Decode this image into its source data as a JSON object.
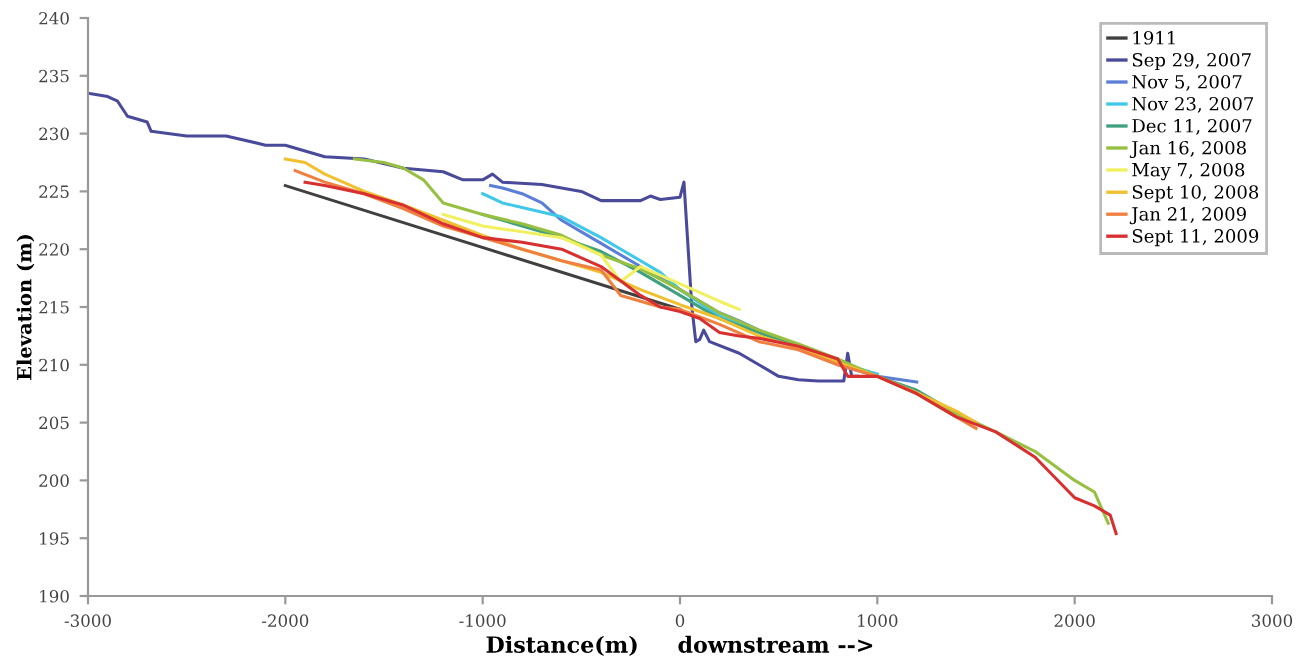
{
  "chart_data": {
    "type": "line",
    "xlabel": "Distance(m)     downstream -->",
    "ylabel": "Elevation (m)",
    "xlim": [
      -3000,
      3000
    ],
    "xticks": [
      -3000,
      -2000,
      -1000,
      0,
      1000,
      2000,
      3000
    ],
    "ylim": [
      190,
      240
    ],
    "yticks": [
      190,
      195,
      200,
      205,
      210,
      215,
      220,
      225,
      230,
      235,
      240
    ],
    "grid": false,
    "legend": "top right",
    "marker": "none",
    "line_style": "solid",
    "series": [
      {
        "name": "1911",
        "color": "#404040",
        "x": [
          -2000,
          0
        ],
        "values": [
          225.5,
          214.8
        ]
      },
      {
        "name": "Sep 29, 2007",
        "color": "#4a4a9a",
        "x": [
          -3000,
          -2900,
          -2850,
          -2800,
          -2700,
          -2680,
          -2500,
          -2300,
          -2100,
          -2000,
          -1800,
          -1600,
          -1400,
          -1200,
          -1100,
          -1000,
          -950,
          -900,
          -700,
          -500,
          -400,
          -200,
          -150,
          -100,
          0,
          20,
          60,
          80,
          100,
          120,
          150,
          300,
          400,
          500,
          600,
          700,
          800,
          830,
          850,
          870,
          900
        ],
        "values": [
          233.5,
          233.2,
          232.8,
          231.5,
          231,
          230.2,
          229.8,
          229.8,
          229,
          229,
          228,
          227.8,
          227,
          226.7,
          226,
          226,
          226.5,
          225.8,
          225.6,
          225,
          224.2,
          224.2,
          224.6,
          224.3,
          224.5,
          225.8,
          215,
          212,
          212.2,
          213,
          212,
          211,
          210,
          209,
          208.7,
          208.6,
          208.6,
          208.6,
          211,
          209,
          209
        ]
      },
      {
        "name": "Nov 5, 2007",
        "color": "#5b7fd6",
        "x": [
          -960,
          -900,
          -800,
          -700,
          -600,
          -500,
          -400,
          -300,
          -200,
          -100,
          0,
          100,
          200,
          300,
          400,
          800,
          1000,
          1200
        ],
        "values": [
          225.5,
          225.3,
          224.8,
          224,
          222.5,
          221.5,
          220.5,
          219.5,
          218.5,
          217.5,
          216.5,
          215.5,
          214.5,
          213.8,
          213,
          210,
          209,
          208.5
        ]
      },
      {
        "name": "Nov 23, 2007",
        "color": "#40c8e8",
        "x": [
          -1000,
          -900,
          -800,
          -600,
          -400,
          -300,
          -200,
          -100,
          0,
          200,
          400,
          800,
          1000
        ],
        "values": [
          224.8,
          224,
          223.6,
          222.8,
          221,
          220,
          219,
          218,
          216.5,
          214.2,
          212.8,
          210.2,
          209.2
        ]
      },
      {
        "name": "Dec 11, 2007",
        "color": "#40a080",
        "x": [
          -1000,
          -800,
          -600,
          -400,
          -200,
          0,
          200,
          400,
          600,
          800,
          1000,
          1200,
          1400,
          1500
        ],
        "values": [
          223,
          222,
          221,
          219.8,
          218,
          216,
          214,
          212.8,
          211.5,
          210.2,
          209,
          207.8,
          205.8,
          205
        ]
      },
      {
        "name": "Jan 16, 2008",
        "color": "#98c040",
        "x": [
          -1650,
          -1500,
          -1400,
          -1300,
          -1200,
          -1100,
          -1000,
          -800,
          -600,
          -400,
          -200,
          0,
          200,
          400,
          600,
          800,
          1000,
          1200,
          1400,
          1600,
          1800,
          2000,
          2100,
          2170
        ],
        "values": [
          227.8,
          227.5,
          227,
          226,
          224,
          223.5,
          223,
          222.2,
          221.2,
          219.5,
          218.3,
          216.5,
          214.5,
          213,
          211.8,
          210.5,
          209,
          207.5,
          205.8,
          204.2,
          202.5,
          200,
          199,
          196.3
        ]
      },
      {
        "name": "May 7, 2008",
        "color": "#f0f060",
        "x": [
          -1200,
          -1000,
          -800,
          -600,
          -400,
          -300,
          -200,
          0,
          200,
          300
        ],
        "values": [
          223,
          222,
          221.5,
          221,
          219.5,
          217.2,
          218.5,
          217,
          215.5,
          214.8
        ]
      },
      {
        "name": "Sept 10, 2008",
        "color": "#f0c030",
        "x": [
          -2000,
          -1900,
          -1800,
          -1600,
          -1400,
          -1200,
          -1000,
          -800,
          -600,
          -400,
          -200,
          0,
          200,
          400,
          600,
          800,
          1000,
          1200,
          1400,
          1500
        ],
        "values": [
          227.8,
          227.5,
          226.5,
          225,
          223.8,
          222.5,
          221.2,
          220,
          219,
          218,
          216.5,
          215.2,
          214,
          212.5,
          211.5,
          210.2,
          209,
          207.6,
          206,
          205
        ]
      },
      {
        "name": "Jan 21, 2009",
        "color": "#f08040",
        "x": [
          -1950,
          -1800,
          -1600,
          -1400,
          -1200,
          -1000,
          -800,
          -600,
          -400,
          -300,
          -200,
          -100,
          0,
          200,
          400,
          600,
          800,
          1000,
          1200,
          1400,
          1500
        ],
        "values": [
          226.8,
          225.8,
          224.8,
          223.5,
          222,
          221,
          220,
          219,
          218.2,
          216,
          215.5,
          215,
          214.8,
          213.5,
          212,
          211.3,
          210,
          209,
          207.5,
          205.5,
          204.5
        ]
      },
      {
        "name": "Sept 11, 2009",
        "color": "#d83030",
        "x": [
          -1900,
          -1800,
          -1600,
          -1400,
          -1200,
          -1000,
          -800,
          -600,
          -400,
          -200,
          -100,
          0,
          100,
          200,
          300,
          400,
          600,
          800,
          850,
          1000,
          1200,
          1400,
          1600,
          1800,
          2000,
          2100,
          2180,
          2210
        ],
        "values": [
          225.8,
          225.5,
          224.8,
          223.8,
          222.2,
          221,
          220.6,
          220,
          218.5,
          216,
          215,
          214.6,
          214,
          212.8,
          212.5,
          212.3,
          211.6,
          210.5,
          209,
          209,
          207.5,
          205.5,
          204.2,
          202,
          198.5,
          197.8,
          197,
          195.4
        ]
      }
    ]
  }
}
